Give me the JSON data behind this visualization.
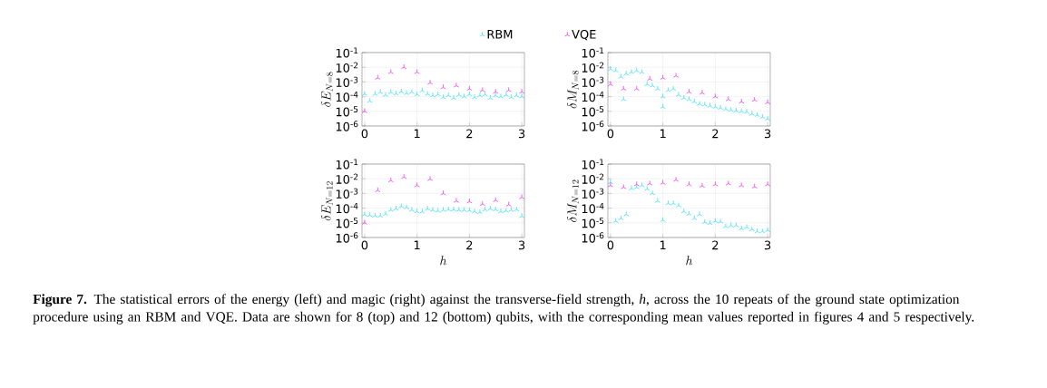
{
  "chart_data": [
    {
      "type": "scatter",
      "ylabel": "\\delta E_{N=8}",
      "xlim": [
        -0.05,
        3.05
      ],
      "xticks": [
        0,
        1,
        2,
        3
      ],
      "ylim": [
        1e-06,
        0.1
      ],
      "log": "y",
      "grid": true,
      "marker": "cross",
      "legend": "top",
      "yticks": [
        {
          "value": 1e-06,
          "label": "10$^{-6}$"
        },
        {
          "value": 1e-05,
          "label": "10$^{-5}$"
        },
        {
          "value": 0.0001,
          "label": "10$^{-4}$"
        },
        {
          "value": 0.001,
          "label": "10$^{-3}$"
        },
        {
          "value": 0.01,
          "label": "10$^{-2}$"
        },
        {
          "value": 0.1,
          "label": "10$^{-1}$"
        }
      ],
      "annotations": [
        "**Figure 7.** The statistical errors of the energy (left) and magic (right) against the transverse-field strength, *h*, across the 10 repeats of the ground state optimization procedure using an RBM and VQE. Data are shown for 8 (top) and 12 (bottom) qubits, with the corresponding mean values reported in figures 4 and 5 respectively."
      ],
      "series": [
        {
          "name": "RBM",
          "color": "#1fdcf0",
          "x": [
            0,
            0.1,
            0.2,
            0.3,
            0.4,
            0.5,
            0.6,
            0.7,
            0.8,
            0.9,
            1.0,
            1.1,
            1.2,
            1.3,
            1.4,
            1.5,
            1.6,
            1.7,
            1.8,
            1.9,
            2.0,
            2.1,
            2.2,
            2.3,
            2.4,
            2.5,
            2.6,
            2.7,
            2.8,
            2.9,
            3.0
          ],
          "values": [
            0.00015,
            5e-05,
            0.00015,
            0.0002,
            0.00013,
            0.0002,
            0.00016,
            0.00022,
            0.00017,
            0.0002,
            0.00014,
            0.00025,
            0.00015,
            0.00012,
            0.00014,
            9e-05,
            0.00012,
            8e-05,
            0.00013,
            0.0001,
            0.00014,
            9e-05,
            0.00012,
            0.00014,
            8e-05,
            0.00012,
            0.0001,
            0.00013,
            9e-05,
            0.00012,
            0.0001
          ]
        },
        {
          "name": "VQE",
          "color": "#f01ef0",
          "x": [
            0,
            0.25,
            0.5,
            0.75,
            1.0,
            1.25,
            1.5,
            1.75,
            2.0,
            2.25,
            2.5,
            2.75,
            3.0
          ],
          "values": [
            1e-05,
            0.0019,
            0.0046,
            0.01,
            0.0046,
            0.00087,
            0.00043,
            0.00055,
            0.00034,
            0.00027,
            0.00021,
            0.00027,
            0.00021
          ]
        }
      ]
    },
    {
      "type": "scatter",
      "ylabel": "\\delta M_{N=8}",
      "xlim": [
        -0.05,
        3.05
      ],
      "xticks": [
        0,
        1,
        2,
        3
      ],
      "ylim": [
        1e-06,
        0.1
      ],
      "log": "y",
      "grid": true,
      "marker": "cross",
      "yticks": [
        {
          "value": 1e-06,
          "label": "10$^{-6}$"
        },
        {
          "value": 1e-05,
          "label": "10$^{-5}$"
        },
        {
          "value": 0.0001,
          "label": "10$^{-4}$"
        },
        {
          "value": 0.001,
          "label": "10$^{-3}$"
        },
        {
          "value": 0.01,
          "label": "10$^{-2}$"
        },
        {
          "value": 0.1,
          "label": "10$^{-1}$"
        }
      ],
      "series": [
        {
          "color": "#1fdcf0",
          "x": [
            0,
            0.1,
            0.2,
            0.25,
            0.3,
            0.4,
            0.5,
            0.6,
            0.7,
            0.8,
            0.9,
            1.0,
            1.0,
            1.1,
            1.2,
            1.3,
            1.4,
            1.5,
            1.6,
            1.7,
            1.8,
            1.9,
            2.0,
            2.1,
            2.2,
            2.3,
            2.4,
            2.5,
            2.6,
            2.7,
            2.8,
            2.9,
            3.0
          ],
          "values": [
            0.0074,
            0.006,
            0.0022,
            6.5e-05,
            0.0036,
            0.0046,
            0.0058,
            0.0046,
            0.00069,
            0.00055,
            0.00034,
            2e-05,
            0.0001,
            0.00027,
            0.00034,
            0.00013,
            8e-05,
            6.5e-05,
            4.5e-05,
            3.2e-05,
            2.8e-05,
            2.3e-05,
            2e-05,
            1.7e-05,
            1.4e-05,
            1.2e-05,
            1.1e-05,
            1e-05,
            9e-06,
            6.6e-06,
            5.5e-06,
            4.1e-06,
            3e-06
          ]
        },
        {
          "color": "#f01ef0",
          "x": [
            0,
            0.25,
            0.5,
            0.75,
            1.0,
            1.25,
            1.5,
            1.75,
            2.0,
            2.25,
            2.5,
            2.75,
            3.0
          ],
          "values": [
            0.00069,
            0.00034,
            0.00034,
            0.0016,
            0.0019,
            0.0026,
            0.00021,
            0.00018,
            0.0001,
            6.5e-05,
            4.5e-05,
            5.9e-05,
            4e-05
          ]
        }
      ]
    },
    {
      "type": "scatter",
      "ylabel": "\\delta E_{N=12}",
      "xlabel": "h",
      "xlim": [
        -0.05,
        3.05
      ],
      "xticks": [
        0,
        1,
        2,
        3
      ],
      "ylim": [
        1e-06,
        0.1
      ],
      "log": "y",
      "grid": true,
      "marker": "cross",
      "yticks": [
        {
          "value": 1e-06,
          "label": "10$^{-6}$"
        },
        {
          "value": 1e-05,
          "label": "10$^{-5}$"
        },
        {
          "value": 0.0001,
          "label": "10$^{-4}$"
        },
        {
          "value": 0.001,
          "label": "10$^{-3}$"
        },
        {
          "value": 0.01,
          "label": "10$^{-2}$"
        },
        {
          "value": 0.1,
          "label": "10$^{-1}$"
        }
      ],
      "series": [
        {
          "color": "#1fdcf0",
          "x": [
            0,
            0.1,
            0.2,
            0.3,
            0.4,
            0.5,
            0.6,
            0.7,
            0.8,
            0.9,
            1.0,
            1.1,
            1.2,
            1.3,
            1.4,
            1.5,
            1.6,
            1.7,
            1.8,
            1.9,
            2.0,
            2.1,
            2.2,
            2.3,
            2.4,
            2.5,
            2.6,
            2.7,
            2.8,
            2.9,
            3.0
          ],
          "values": [
            3.6e-05,
            3.3e-05,
            3e-05,
            3e-05,
            4e-05,
            7.4e-05,
            9e-05,
            0.00013,
            0.00011,
            7.4e-05,
            5.9e-05,
            5.7e-05,
            9e-05,
            7.4e-05,
            6.5e-05,
            7.4e-05,
            8e-05,
            8e-05,
            7.4e-05,
            7.4e-05,
            7e-05,
            5.9e-05,
            5.2e-05,
            8e-05,
            9e-05,
            8e-05,
            5.9e-05,
            6.5e-05,
            7.4e-05,
            8e-05,
            2.8e-05
          ]
        },
        {
          "color": "#f01ef0",
          "x": [
            0,
            0.25,
            0.5,
            0.75,
            1.0,
            1.25,
            1.5,
            1.75,
            2.0,
            2.25,
            2.5,
            2.75,
            3.0
          ],
          "values": [
            1e-05,
            0.0016,
            0.0076,
            0.013,
            0.0035,
            0.0095,
            0.001,
            0.00031,
            0.00028,
            0.00019,
            0.00034,
            0.00017,
            0.00054
          ]
        }
      ]
    },
    {
      "type": "scatter",
      "ylabel": "\\delta M_{N=12}",
      "xlabel": "h",
      "xlim": [
        -0.05,
        3.05
      ],
      "xticks": [
        0,
        1,
        2,
        3
      ],
      "ylim": [
        1e-06,
        0.1
      ],
      "log": "y",
      "grid": true,
      "marker": "cross",
      "yticks": [
        {
          "value": 1e-06,
          "label": "10$^{-6}$"
        },
        {
          "value": 1e-05,
          "label": "10$^{-5}$"
        },
        {
          "value": 0.0001,
          "label": "10$^{-4}$"
        },
        {
          "value": 0.001,
          "label": "10$^{-3}$"
        },
        {
          "value": 0.01,
          "label": "10$^{-2}$"
        },
        {
          "value": 0.1,
          "label": "10$^{-1}$"
        }
      ],
      "series": [
        {
          "color": "#1fdcf0",
          "x": [
            0,
            0.1,
            0.2,
            0.3,
            0.4,
            0.5,
            0.6,
            0.7,
            0.8,
            0.9,
            1.0,
            1.1,
            1.2,
            1.3,
            1.4,
            1.5,
            1.6,
            1.7,
            1.8,
            1.9,
            2.0,
            2.1,
            2.2,
            2.3,
            2.4,
            2.5,
            2.6,
            2.7,
            2.8,
            2.9,
            3.0
          ],
          "values": [
            0.0057,
            1.3e-05,
            2e-05,
            3.7e-05,
            0.0022,
            0.0026,
            0.0035,
            0.002,
            0.001,
            0.00031,
            1.5e-05,
            0.00021,
            0.00021,
            0.00015,
            5.9e-05,
            4e-05,
            2e-05,
            3.7e-05,
            1.1e-05,
            9.4e-06,
            1.3e-05,
            1.2e-05,
            5.7e-06,
            6.6e-06,
            6.6e-06,
            4.1e-06,
            5e-06,
            3.6e-06,
            2.6e-06,
            2.6e-06,
            3.1e-06
          ]
        },
        {
          "color": "#f01ef0",
          "x": [
            0,
            0.25,
            0.5,
            0.75,
            1.0,
            1.25,
            1.5,
            1.75,
            2.0,
            2.25,
            2.5,
            2.75,
            3.0
          ],
          "values": [
            0.0035,
            0.0026,
            0.0041,
            0.0047,
            0.0052,
            0.0083,
            0.0041,
            0.0033,
            0.0041,
            0.0047,
            0.0035,
            0.0029,
            0.0041
          ]
        }
      ]
    }
  ]
}
